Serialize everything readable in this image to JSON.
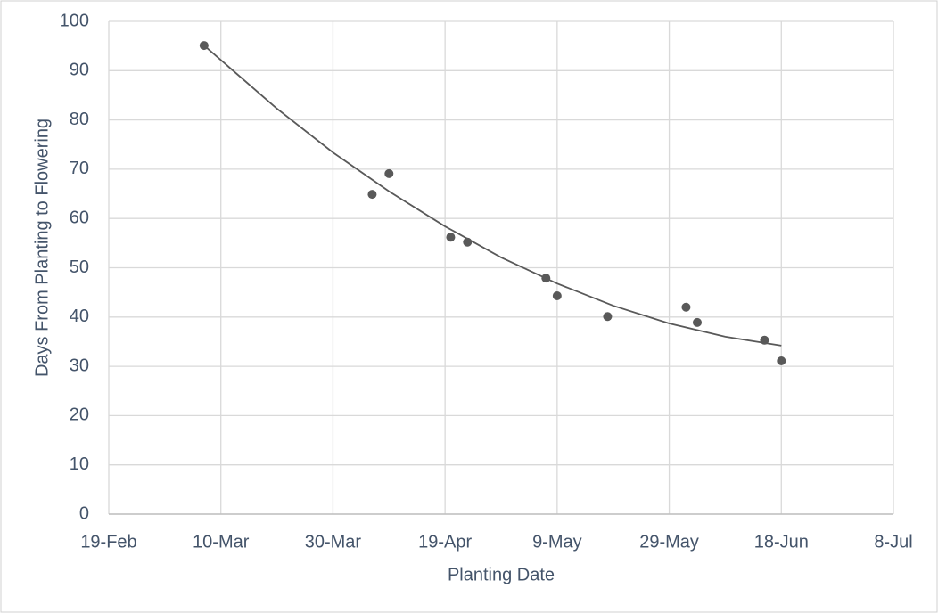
{
  "chart_data": {
    "type": "scatter",
    "x_label": "Planting Date",
    "y_label": "Days From Planting to Flowering",
    "xlim": [
      50,
      190
    ],
    "xticks": [
      {
        "value": 50,
        "label": "19-Feb"
      },
      {
        "value": 70,
        "label": "10-Mar"
      },
      {
        "value": 90,
        "label": "30-Mar"
      },
      {
        "value": 110,
        "label": "19-Apr"
      },
      {
        "value": 130,
        "label": "9-May"
      },
      {
        "value": 150,
        "label": "29-May"
      },
      {
        "value": 170,
        "label": "18-Jun"
      },
      {
        "value": 190,
        "label": "8-Jul"
      }
    ],
    "ylim": [
      0,
      100
    ],
    "yticks": [
      0,
      10,
      20,
      30,
      40,
      50,
      60,
      70,
      80,
      90,
      100
    ],
    "grid": true,
    "series": [
      {
        "color": "#595959",
        "x": [
          67,
          97,
          100,
          111,
          114,
          128,
          130,
          139,
          153,
          155,
          167,
          170
        ],
        "values": [
          95.1,
          64.9,
          69.1,
          56.2,
          55.2,
          47.9,
          44.3,
          40.1,
          42.0,
          38.9,
          35.3,
          31.1
        ]
      }
    ],
    "trendline": {
      "color": "#595959",
      "x": [
        67,
        80,
        90,
        100,
        110,
        120,
        130,
        140,
        150,
        160,
        170
      ],
      "values": [
        95.1,
        82.3,
        73.4,
        65.5,
        58.4,
        52.1,
        46.8,
        42.3,
        38.7,
        36.0,
        34.2
      ]
    }
  }
}
